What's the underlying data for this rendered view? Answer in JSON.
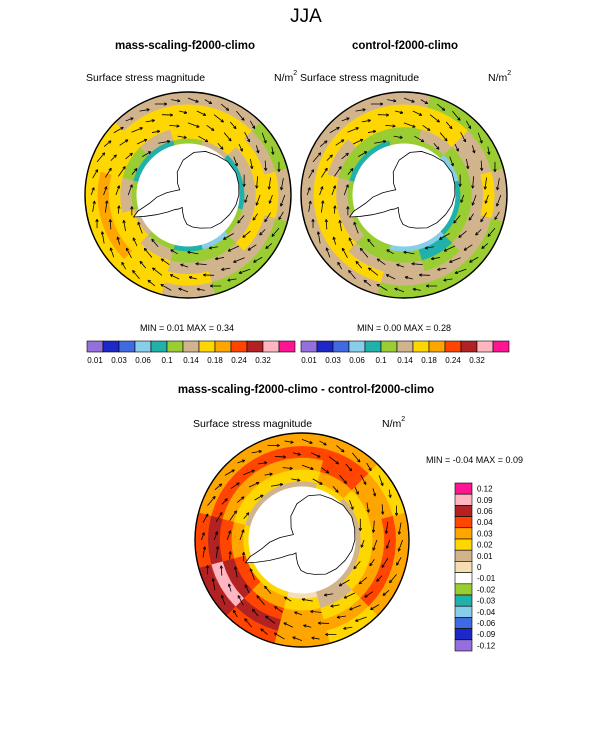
{
  "figure": {
    "title": "JJA",
    "panels": [
      {
        "title": "mass-scaling-f2000-climo",
        "subtitle": "Surface stress magnitude",
        "units": "N/m",
        "units_exp": "2",
        "minmax": "MIN =  0.01 MAX =   0.34"
      },
      {
        "title": "control-f2000-climo",
        "subtitle": "Surface stress magnitude",
        "units": "N/m",
        "units_exp": "2",
        "minmax": "MIN =  0.00 MAX =   0.28"
      },
      {
        "title": "mass-scaling-f2000-climo - control-f2000-climo",
        "subtitle": "Surface stress magnitude",
        "units": "N/m",
        "units_exp": "2",
        "minmax": "MIN = -0.04 MAX =   0.09"
      }
    ]
  },
  "chart_data": [
    {
      "type": "heatmap",
      "projection": "south-polar-stereographic",
      "title": "mass-scaling-f2000-climo",
      "variable": "Surface stress magnitude",
      "units": "N/m2",
      "min": 0.01,
      "max": 0.34,
      "colorbar": {
        "orientation": "horizontal",
        "levels": [
          "0.01",
          "0.03",
          "0.06",
          "0.1",
          "0.14",
          "0.18",
          "0.24",
          "0.32"
        ],
        "colors": [
          "#9370db",
          "#1e28c8",
          "#4169e1",
          "#87ceeb",
          "#20b2aa",
          "#9acd32",
          "#d2b48c",
          "#ffd700",
          "#ffa500",
          "#ff4500",
          "#b22222",
          "#ffb6c1",
          "#ff1493"
        ]
      },
      "sectors": [
        {
          "lon": 0,
          "values": [
            0.1,
            0.18,
            0.24,
            0.24,
            0.18
          ]
        },
        {
          "lon": 30,
          "values": [
            0.14,
            0.18,
            0.24,
            0.18,
            0.14
          ]
        },
        {
          "lon": 60,
          "values": [
            0.06,
            0.14,
            0.18,
            0.18,
            0.14
          ]
        },
        {
          "lon": 90,
          "values": [
            0.1,
            0.14,
            0.18,
            0.24,
            0.18
          ]
        },
        {
          "lon": 120,
          "values": [
            0.14,
            0.18,
            0.24,
            0.24,
            0.24
          ]
        },
        {
          "lon": 150,
          "values": [
            0.18,
            0.24,
            0.24,
            0.32,
            0.24
          ]
        },
        {
          "lon": 180,
          "values": [
            0.14,
            0.18,
            0.24,
            0.32,
            0.24
          ]
        },
        {
          "lon": 210,
          "values": [
            0.1,
            0.14,
            0.24,
            0.24,
            0.24
          ]
        },
        {
          "lon": 240,
          "values": [
            0.1,
            0.18,
            0.24,
            0.24,
            0.18
          ]
        },
        {
          "lon": 270,
          "values": [
            0.14,
            0.24,
            0.24,
            0.24,
            0.18
          ]
        },
        {
          "lon": 300,
          "values": [
            0.18,
            0.24,
            0.24,
            0.24,
            0.18
          ]
        },
        {
          "lon": 330,
          "values": [
            0.1,
            0.18,
            0.24,
            0.18,
            0.14
          ]
        }
      ]
    },
    {
      "type": "heatmap",
      "projection": "south-polar-stereographic",
      "title": "control-f2000-climo",
      "variable": "Surface stress magnitude",
      "units": "N/m2",
      "min": 0.0,
      "max": 0.28,
      "colorbar": {
        "orientation": "horizontal",
        "levels": [
          "0.01",
          "0.03",
          "0.06",
          "0.1",
          "0.14",
          "0.18",
          "0.24",
          "0.32"
        ],
        "colors": [
          "#9370db",
          "#1e28c8",
          "#4169e1",
          "#87ceeb",
          "#20b2aa",
          "#9acd32",
          "#d2b48c",
          "#ffd700",
          "#ffa500",
          "#ff4500",
          "#b22222",
          "#ffb6c1",
          "#ff1493"
        ]
      },
      "sectors": [
        {
          "lon": 0,
          "values": [
            0.1,
            0.14,
            0.18,
            0.24,
            0.18
          ]
        },
        {
          "lon": 30,
          "values": [
            0.1,
            0.14,
            0.18,
            0.18,
            0.14
          ]
        },
        {
          "lon": 60,
          "values": [
            0.06,
            0.1,
            0.14,
            0.18,
            0.14
          ]
        },
        {
          "lon": 90,
          "values": [
            0.06,
            0.14,
            0.18,
            0.18,
            0.14
          ]
        },
        {
          "lon": 120,
          "values": [
            0.14,
            0.14,
            0.18,
            0.24,
            0.18
          ]
        },
        {
          "lon": 150,
          "values": [
            0.14,
            0.18,
            0.24,
            0.24,
            0.18
          ]
        },
        {
          "lon": 180,
          "values": [
            0.14,
            0.18,
            0.24,
            0.24,
            0.18
          ]
        },
        {
          "lon": 210,
          "values": [
            0.1,
            0.14,
            0.18,
            0.24,
            0.18
          ]
        },
        {
          "lon": 240,
          "values": [
            0.1,
            0.14,
            0.24,
            0.24,
            0.18
          ]
        },
        {
          "lon": 270,
          "values": [
            0.14,
            0.14,
            0.24,
            0.24,
            0.18
          ]
        },
        {
          "lon": 300,
          "values": [
            0.14,
            0.18,
            0.24,
            0.24,
            0.14
          ]
        },
        {
          "lon": 330,
          "values": [
            0.06,
            0.14,
            0.18,
            0.18,
            0.14
          ]
        }
      ]
    },
    {
      "type": "heatmap",
      "projection": "south-polar-stereographic",
      "title": "mass-scaling-f2000-climo - control-f2000-climo",
      "variable": "Surface stress magnitude",
      "units": "N/m2",
      "min": -0.04,
      "max": 0.09,
      "colorbar": {
        "orientation": "vertical",
        "levels": [
          "0.12",
          "0.09",
          "0.06",
          "0.04",
          "0.03",
          "0.02",
          "0.01",
          "0",
          "-0.01",
          "-0.02",
          "-0.03",
          "-0.04",
          "-0.06",
          "-0.09",
          "-0.12"
        ],
        "colors": [
          "#ff1493",
          "#ffb6c1",
          "#b22222",
          "#ff4500",
          "#ffa500",
          "#ffd700",
          "#d2b48c",
          "#f5deb3",
          "#ffffff",
          "#9acd32",
          "#20b2aa",
          "#87ceeb",
          "#4169e1",
          "#1e28c8",
          "#9370db"
        ]
      },
      "sectors": [
        {
          "lon": 0,
          "values": [
            0.0,
            0.01,
            0.02,
            0.03,
            0.02
          ]
        },
        {
          "lon": 30,
          "values": [
            0.0,
            0.01,
            0.02,
            0.03,
            0.02
          ]
        },
        {
          "lon": 60,
          "values": [
            0.0,
            0.0,
            0.01,
            0.02,
            0.01
          ]
        },
        {
          "lon": 90,
          "values": [
            -0.01,
            0.01,
            0.02,
            0.02,
            0.02
          ]
        },
        {
          "lon": 120,
          "values": [
            0.01,
            0.02,
            0.03,
            0.04,
            0.03
          ]
        },
        {
          "lon": 150,
          "values": [
            0.01,
            0.03,
            0.04,
            0.06,
            0.04
          ]
        },
        {
          "lon": 180,
          "values": [
            0.01,
            0.02,
            0.03,
            0.04,
            0.03
          ]
        },
        {
          "lon": 210,
          "values": [
            0.0,
            0.01,
            0.02,
            0.03,
            0.02
          ]
        },
        {
          "lon": 240,
          "values": [
            0.0,
            0.01,
            0.02,
            0.03,
            0.02
          ]
        },
        {
          "lon": 270,
          "values": [
            0.0,
            0.01,
            0.02,
            0.03,
            0.02
          ]
        },
        {
          "lon": 300,
          "values": [
            0.01,
            0.02,
            0.03,
            0.03,
            0.02
          ]
        },
        {
          "lon": 330,
          "values": [
            0.0,
            0.01,
            0.02,
            0.02,
            0.01
          ]
        }
      ]
    }
  ]
}
